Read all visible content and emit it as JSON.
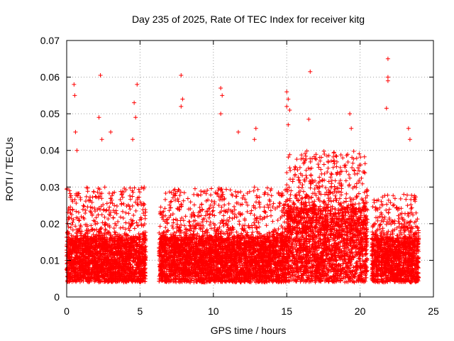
{
  "chart_data": {
    "type": "scatter",
    "title": "Day 235 of 2025, Rate Of TEC Index for receiver kitg",
    "xlabel": "GPS time / hours",
    "ylabel": "ROTI / TECUs",
    "xlim": [
      0,
      25
    ],
    "ylim": [
      0,
      0.07
    ],
    "x_ticks": [
      0,
      5,
      10,
      15,
      20,
      25
    ],
    "x_tick_labels": [
      "0",
      "5",
      "10",
      "15",
      "20",
      "25"
    ],
    "y_ticks": [
      0,
      0.01,
      0.02,
      0.03,
      0.04,
      0.05,
      0.06,
      0.07
    ],
    "y_tick_labels": [
      "0",
      "0.01",
      "0.02",
      "0.03",
      "0.04",
      "0.05",
      "0.06",
      "0.07"
    ],
    "grid": true,
    "marker": "+",
    "color": "#ff0000",
    "series": [
      {
        "name": "ROTI",
        "dense_band_estimate": [
          {
            "x_range": [
              0.0,
              5.4
            ],
            "y_core": [
              0.004,
              0.016
            ],
            "y_spread_max": 0.03
          },
          {
            "x_range": [
              6.3,
              15.0
            ],
            "y_core": [
              0.004,
              0.016
            ],
            "y_spread_max": 0.03
          },
          {
            "x_range": [
              15.0,
              20.5
            ],
            "y_core": [
              0.004,
              0.024
            ],
            "y_spread_max": 0.04
          },
          {
            "x_range": [
              20.8,
              24.0
            ],
            "y_core": [
              0.004,
              0.016
            ],
            "y_spread_max": 0.028
          }
        ],
        "outliers": [
          {
            "x": 0.5,
            "y": 0.058
          },
          {
            "x": 0.55,
            "y": 0.055
          },
          {
            "x": 0.6,
            "y": 0.045
          },
          {
            "x": 0.7,
            "y": 0.04
          },
          {
            "x": 2.3,
            "y": 0.0605
          },
          {
            "x": 2.2,
            "y": 0.049
          },
          {
            "x": 2.4,
            "y": 0.043
          },
          {
            "x": 3.0,
            "y": 0.045
          },
          {
            "x": 4.6,
            "y": 0.053
          },
          {
            "x": 4.7,
            "y": 0.049
          },
          {
            "x": 4.8,
            "y": 0.058
          },
          {
            "x": 4.5,
            "y": 0.043
          },
          {
            "x": 7.8,
            "y": 0.0605
          },
          {
            "x": 7.9,
            "y": 0.054
          },
          {
            "x": 7.8,
            "y": 0.052
          },
          {
            "x": 10.5,
            "y": 0.057
          },
          {
            "x": 10.6,
            "y": 0.055
          },
          {
            "x": 10.5,
            "y": 0.05
          },
          {
            "x": 11.7,
            "y": 0.045
          },
          {
            "x": 12.9,
            "y": 0.046
          },
          {
            "x": 12.8,
            "y": 0.043
          },
          {
            "x": 15.0,
            "y": 0.056
          },
          {
            "x": 15.1,
            "y": 0.054
          },
          {
            "x": 15.0,
            "y": 0.052
          },
          {
            "x": 15.2,
            "y": 0.051
          },
          {
            "x": 15.1,
            "y": 0.047
          },
          {
            "x": 16.6,
            "y": 0.0615
          },
          {
            "x": 16.5,
            "y": 0.0485
          },
          {
            "x": 19.3,
            "y": 0.05
          },
          {
            "x": 19.4,
            "y": 0.046
          },
          {
            "x": 21.9,
            "y": 0.065
          },
          {
            "x": 21.9,
            "y": 0.06
          },
          {
            "x": 21.9,
            "y": 0.059
          },
          {
            "x": 21.8,
            "y": 0.0515
          },
          {
            "x": 23.3,
            "y": 0.046
          },
          {
            "x": 23.4,
            "y": 0.043
          }
        ]
      }
    ]
  }
}
